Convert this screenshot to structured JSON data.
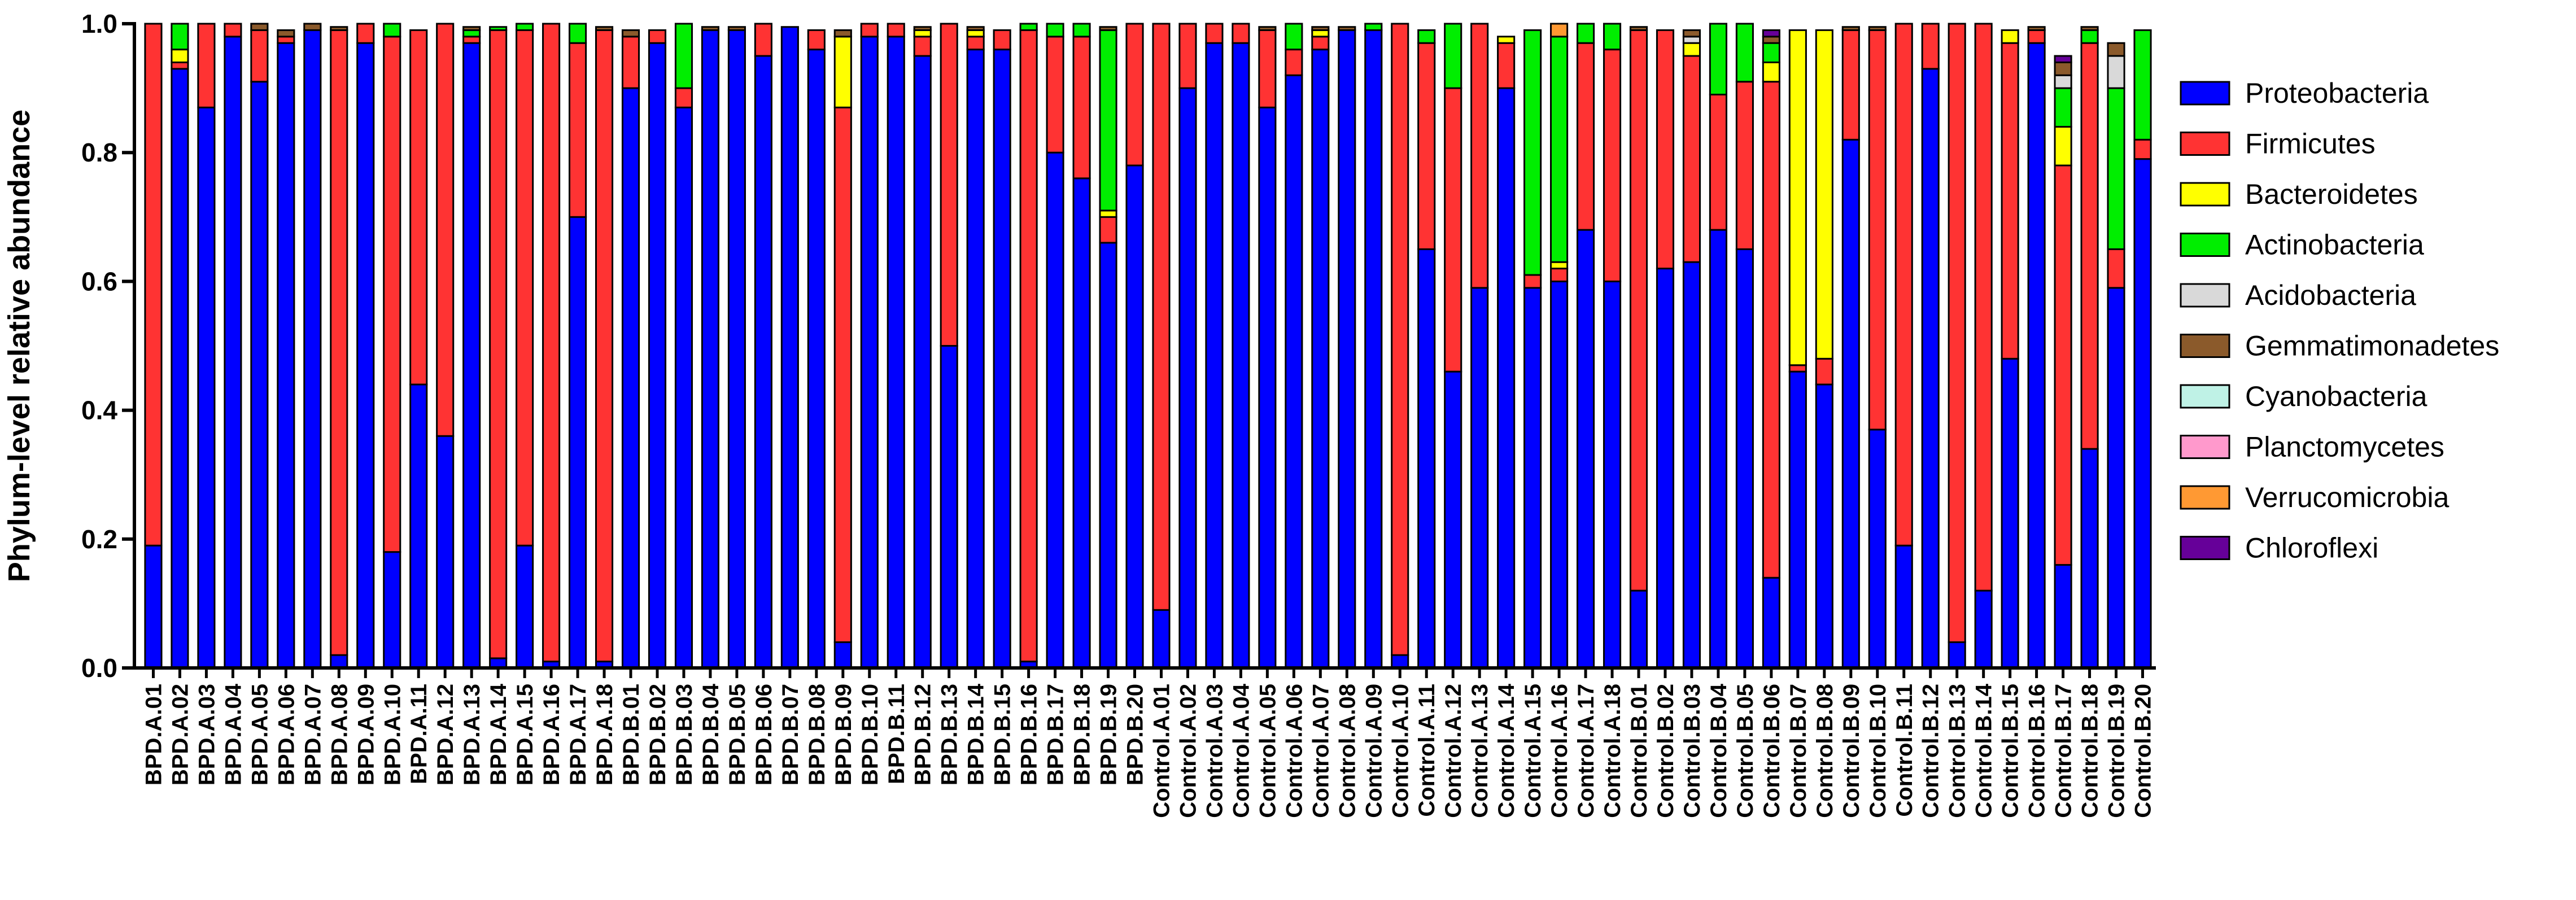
{
  "chart_data": {
    "type": "bar",
    "stacked": true,
    "ylabel": "Phylum-level relative abundance",
    "ylim": [
      0,
      1.0
    ],
    "yticks": [
      "0.0",
      "0.2",
      "0.4",
      "0.6",
      "0.8",
      "1.0"
    ],
    "legend_position": "right",
    "categories": [
      "BPD.A.01",
      "BPD.A.02",
      "BPD.A.03",
      "BPD.A.04",
      "BPD.A.05",
      "BPD.A.06",
      "BPD.A.07",
      "BPD.A.08",
      "BPD.A.09",
      "BPD.A.10",
      "BPD.A.11",
      "BPD.A.12",
      "BPD.A.13",
      "BPD.A.14",
      "BPD.A.15",
      "BPD.A.16",
      "BPD.A.17",
      "BPD.A.18",
      "BPD.B.01",
      "BPD.B.02",
      "BPD.B.03",
      "BPD.B.04",
      "BPD.B.05",
      "BPD.B.06",
      "BPD.B.07",
      "BPD.B.08",
      "BPD.B.09",
      "BPD.B.10",
      "BPD.B.11",
      "BPD.B.12",
      "BPD.B.13",
      "BPD.B.14",
      "BPD.B.15",
      "BPD.B.16",
      "BPD.B.17",
      "BPD.B.18",
      "BPD.B.19",
      "BPD.B.20",
      "Control.A.01",
      "Control.A.02",
      "Control.A.03",
      "Control.A.04",
      "Control.A.05",
      "Control.A.06",
      "Control.A.07",
      "Control.A.08",
      "Control.A.09",
      "Control.A.10",
      "Control.A.11",
      "Control.A.12",
      "Control.A.13",
      "Control.A.14",
      "Control.A.15",
      "Control.A.16",
      "Control.A.17",
      "Control.A.18",
      "Control.B.01",
      "Control.B.02",
      "Control.B.03",
      "Control.B.04",
      "Control.B.05",
      "Control.B.06",
      "Control.B.07",
      "Control.B.08",
      "Control.B.09",
      "Control.B.10",
      "Control.B.11",
      "Control.B.12",
      "Control.B.13",
      "Control.B.14",
      "Control.B.15",
      "Control.B.16",
      "Control.B.17",
      "Control.B.18",
      "Control.B.19",
      "Control.B.20"
    ],
    "series": [
      {
        "name": "Proteobacteria",
        "color": "#0000ff",
        "values": [
          0.19,
          0.93,
          0.87,
          0.98,
          0.91,
          0.97,
          0.99,
          0.02,
          0.97,
          0.18,
          0.44,
          0.36,
          0.97,
          0.015,
          0.19,
          0.01,
          0.7,
          0.01,
          0.9,
          0.97,
          0.87,
          0.99,
          0.99,
          0.95,
          0.995,
          0.96,
          0.04,
          0.98,
          0.98,
          0.95,
          0.5,
          0.96,
          0.96,
          0.01,
          0.8,
          0.76,
          0.66,
          0.78,
          0.09,
          0.9,
          0.97,
          0.97,
          0.87,
          0.92,
          0.96,
          0.99,
          0.99,
          0.02,
          0.65,
          0.46,
          0.59,
          0.9,
          0.59,
          0.6,
          0.68,
          0.6,
          0.12,
          0.62,
          0.63,
          0.68,
          0.65,
          0.14,
          0.46,
          0.44,
          0.82,
          0.37,
          0.19,
          0.93,
          0.04,
          0.12,
          0.48,
          0.97,
          0.16,
          0.34,
          0.59,
          0.79
        ]
      },
      {
        "name": "Firmicutes",
        "color": "#ff3333",
        "values": [
          0.81,
          0.01,
          0.13,
          0.02,
          0.08,
          0.01,
          0.0,
          0.97,
          0.03,
          0.8,
          0.55,
          0.64,
          0.01,
          0.975,
          0.8,
          0.99,
          0.27,
          0.98,
          0.08,
          0.02,
          0.03,
          0.0,
          0.0,
          0.05,
          0.0,
          0.03,
          0.83,
          0.02,
          0.02,
          0.03,
          0.5,
          0.02,
          0.03,
          0.98,
          0.18,
          0.22,
          0.04,
          0.22,
          0.91,
          0.1,
          0.03,
          0.03,
          0.12,
          0.04,
          0.02,
          0.0,
          0.0,
          0.98,
          0.32,
          0.44,
          0.41,
          0.07,
          0.02,
          0.02,
          0.29,
          0.36,
          0.87,
          0.37,
          0.32,
          0.21,
          0.26,
          0.77,
          0.01,
          0.04,
          0.17,
          0.62,
          0.81,
          0.07,
          0.96,
          0.88,
          0.49,
          0.02,
          0.62,
          0.63,
          0.06,
          0.03
        ]
      },
      {
        "name": "Bacteroidetes",
        "color": "#ffff00",
        "values": [
          0.0,
          0.02,
          0.0,
          0.0,
          0.0,
          0.0,
          0.0,
          0.0,
          0.0,
          0.0,
          0.0,
          0.0,
          0.0,
          0.0,
          0.0,
          0.0,
          0.0,
          0.0,
          0.0,
          0.0,
          0.0,
          0.0,
          0.0,
          0.0,
          0.0,
          0.0,
          0.11,
          0.0,
          0.0,
          0.01,
          0.0,
          0.01,
          0.0,
          0.0,
          0.0,
          0.0,
          0.01,
          0.0,
          0.0,
          0.0,
          0.0,
          0.0,
          0.0,
          0.0,
          0.01,
          0.0,
          0.0,
          0.0,
          0.0,
          0.0,
          0.0,
          0.01,
          0.0,
          0.01,
          0.0,
          0.0,
          0.0,
          0.0,
          0.02,
          0.0,
          0.0,
          0.03,
          0.52,
          0.51,
          0.0,
          0.0,
          0.0,
          0.0,
          0.0,
          0.0,
          0.02,
          0.0,
          0.06,
          0.0,
          0.0,
          0.0
        ]
      },
      {
        "name": "Actinobacteria",
        "color": "#00ee00",
        "values": [
          0.0,
          0.04,
          0.0,
          0.0,
          0.0,
          0.0,
          0.0,
          0.0,
          0.0,
          0.02,
          0.0,
          0.0,
          0.01,
          0.005,
          0.01,
          0.0,
          0.03,
          0.0,
          0.0,
          0.0,
          0.1,
          0.0,
          0.0,
          0.0,
          0.0,
          0.0,
          0.0,
          0.0,
          0.0,
          0.0,
          0.0,
          0.0,
          0.0,
          0.01,
          0.02,
          0.02,
          0.28,
          0.0,
          0.0,
          0.0,
          0.0,
          0.0,
          0.0,
          0.04,
          0.0,
          0.0,
          0.01,
          0.0,
          0.02,
          0.1,
          0.0,
          0.0,
          0.38,
          0.35,
          0.03,
          0.04,
          0.0,
          0.0,
          0.0,
          0.11,
          0.09,
          0.03,
          0.0,
          0.0,
          0.0,
          0.0,
          0.0,
          0.0,
          0.0,
          0.0,
          0.0,
          0.0,
          0.06,
          0.02,
          0.25,
          0.17
        ]
      },
      {
        "name": "Acidobacteria",
        "color": "#d9d9d9",
        "values": [
          0.0,
          0.0,
          0.0,
          0.0,
          0.0,
          0.0,
          0.0,
          0.0,
          0.0,
          0.0,
          0.0,
          0.0,
          0.0,
          0.0,
          0.0,
          0.0,
          0.0,
          0.0,
          0.0,
          0.0,
          0.0,
          0.0,
          0.0,
          0.0,
          0.0,
          0.0,
          0.0,
          0.0,
          0.0,
          0.0,
          0.0,
          0.0,
          0.0,
          0.0,
          0.0,
          0.0,
          0.0,
          0.0,
          0.0,
          0.0,
          0.0,
          0.0,
          0.0,
          0.0,
          0.0,
          0.0,
          0.0,
          0.0,
          0.0,
          0.0,
          0.0,
          0.0,
          0.0,
          0.0,
          0.0,
          0.0,
          0.0,
          0.0,
          0.01,
          0.0,
          0.0,
          0.0,
          0.0,
          0.0,
          0.0,
          0.0,
          0.0,
          0.0,
          0.0,
          0.0,
          0.0,
          0.0,
          0.02,
          0.0,
          0.05,
          0.0
        ]
      },
      {
        "name": "Gemmatimonadetes",
        "color": "#8b5a2b",
        "values": [
          0.0,
          0.0,
          0.0,
          0.0,
          0.01,
          0.01,
          0.01,
          0.005,
          0.0,
          0.0,
          0.0,
          0.0,
          0.005,
          0.0,
          0.0,
          0.0,
          0.0,
          0.005,
          0.01,
          0.0,
          0.0,
          0.005,
          0.005,
          0.0,
          0.0,
          0.0,
          0.01,
          0.0,
          0.0,
          0.005,
          0.0,
          0.005,
          0.0,
          0.0,
          0.0,
          0.0,
          0.005,
          0.0,
          0.0,
          0.0,
          0.0,
          0.0,
          0.005,
          0.0,
          0.005,
          0.005,
          0.0,
          0.0,
          0.0,
          0.0,
          0.0,
          0.0,
          0.0,
          0.0,
          0.0,
          0.0,
          0.005,
          0.0,
          0.01,
          0.0,
          0.0,
          0.01,
          0.0,
          0.0,
          0.005,
          0.005,
          0.0,
          0.0,
          0.005,
          0.0,
          0.0,
          0.005,
          0.02,
          0.005,
          0.02,
          0.0
        ]
      },
      {
        "name": "Cyanobacteria",
        "color": "#bff2e6",
        "values": [
          0.0,
          0.0,
          0.0,
          0.0,
          0.0,
          0.0,
          0.0,
          0.0,
          0.0,
          0.0,
          0.0,
          0.0,
          0.0,
          0.0,
          0.0,
          0.0,
          0.0,
          0.0,
          0.0,
          0.0,
          0.0,
          0.0,
          0.0,
          0.0,
          0.0,
          0.0,
          0.0,
          0.0,
          0.0,
          0.0,
          0.0,
          0.0,
          0.0,
          0.0,
          0.0,
          0.0,
          0.0,
          0.0,
          0.0,
          0.0,
          0.0,
          0.0,
          0.0,
          0.0,
          0.0,
          0.0,
          0.0,
          0.0,
          0.0,
          0.0,
          0.0,
          0.0,
          0.0,
          0.0,
          0.0,
          0.0,
          0.0,
          0.0,
          0.0,
          0.0,
          0.0,
          0.0,
          0.0,
          0.0,
          0.0,
          0.0,
          0.0,
          0.0,
          0.0,
          0.0,
          0.0,
          0.0,
          0.0,
          0.0,
          0.0,
          0.0
        ]
      },
      {
        "name": "Planctomycetes",
        "color": "#ff99cc",
        "values": [
          0.0,
          0.0,
          0.0,
          0.0,
          0.0,
          0.0,
          0.0,
          0.0,
          0.0,
          0.0,
          0.0,
          0.0,
          0.0,
          0.0,
          0.0,
          0.0,
          0.0,
          0.0,
          0.0,
          0.0,
          0.0,
          0.0,
          0.0,
          0.0,
          0.0,
          0.0,
          0.0,
          0.0,
          0.0,
          0.0,
          0.0,
          0.0,
          0.0,
          0.0,
          0.0,
          0.0,
          0.0,
          0.0,
          0.0,
          0.0,
          0.0,
          0.0,
          0.0,
          0.0,
          0.0,
          0.0,
          0.0,
          0.0,
          0.0,
          0.0,
          0.0,
          0.0,
          0.0,
          0.0,
          0.0,
          0.0,
          0.0,
          0.0,
          0.0,
          0.0,
          0.0,
          0.0,
          0.0,
          0.0,
          0.0,
          0.0,
          0.0,
          0.0,
          0.0,
          0.0,
          0.0,
          0.0,
          0.0,
          0.0,
          0.0,
          0.0
        ]
      },
      {
        "name": "Verrucomicrobia",
        "color": "#ff9933",
        "values": [
          0.0,
          0.0,
          0.0,
          0.0,
          0.0,
          0.0,
          0.0,
          0.0,
          0.0,
          0.0,
          0.0,
          0.0,
          0.0,
          0.0,
          0.0,
          0.0,
          0.0,
          0.0,
          0.0,
          0.0,
          0.0,
          0.0,
          0.0,
          0.0,
          0.0,
          0.0,
          0.0,
          0.0,
          0.0,
          0.0,
          0.0,
          0.0,
          0.0,
          0.0,
          0.0,
          0.0,
          0.0,
          0.0,
          0.0,
          0.0,
          0.0,
          0.0,
          0.0,
          0.0,
          0.0,
          0.0,
          0.0,
          0.0,
          0.0,
          0.0,
          0.0,
          0.0,
          0.0,
          0.02,
          0.0,
          0.0,
          0.0,
          0.0,
          0.0,
          0.0,
          0.0,
          0.0,
          0.0,
          0.0,
          0.0,
          0.0,
          0.0,
          0.0,
          0.0,
          0.0,
          0.0,
          0.0,
          0.0,
          0.0,
          0.0,
          0.0
        ]
      },
      {
        "name": "Chloroflexi",
        "color": "#660099",
        "values": [
          0.0,
          0.0,
          0.0,
          0.0,
          0.0,
          0.0,
          0.0,
          0.0,
          0.0,
          0.0,
          0.0,
          0.0,
          0.0,
          0.0,
          0.0,
          0.0,
          0.0,
          0.0,
          0.0,
          0.0,
          0.0,
          0.0,
          0.0,
          0.0,
          0.0,
          0.0,
          0.0,
          0.0,
          0.0,
          0.0,
          0.0,
          0.0,
          0.0,
          0.0,
          0.0,
          0.0,
          0.0,
          0.0,
          0.0,
          0.0,
          0.0,
          0.0,
          0.0,
          0.0,
          0.0,
          0.0,
          0.0,
          0.0,
          0.0,
          0.0,
          0.0,
          0.0,
          0.0,
          0.0,
          0.0,
          0.0,
          0.0,
          0.0,
          0.0,
          0.0,
          0.0,
          0.01,
          0.0,
          0.0,
          0.0,
          0.0,
          0.0,
          0.0,
          0.0,
          0.0,
          0.0,
          0.0,
          0.01,
          0.0,
          0.0,
          0.0
        ]
      }
    ]
  }
}
